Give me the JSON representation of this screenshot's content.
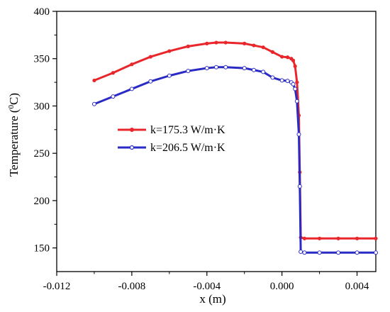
{
  "chart_data": {
    "type": "line",
    "title": "",
    "xlabel": "x (m)",
    "ylabel_main": "Temperature (",
    "ylabel_sup": "0",
    "ylabel_unit": "C)",
    "xlim": [
      -0.012,
      0.005
    ],
    "ylim": [
      125,
      400
    ],
    "xticks": [
      -0.012,
      -0.008,
      -0.004,
      0.0,
      0.004
    ],
    "xtick_labels": [
      "-0.012",
      "-0.008",
      "-0.004",
      "0.000",
      "0.004"
    ],
    "yticks": [
      150,
      200,
      250,
      300,
      350,
      400
    ],
    "ytick_labels": [
      "150",
      "200",
      "250",
      "300",
      "350",
      "400"
    ],
    "legend_position": "left-middle",
    "series": [
      {
        "name": "k=175.3 W/m·K",
        "color": "#e8262b",
        "marker": "filled-circle",
        "points": [
          [
            -0.01,
            327
          ],
          [
            -0.009,
            335
          ],
          [
            -0.008,
            344
          ],
          [
            -0.007,
            352
          ],
          [
            -0.006,
            358
          ],
          [
            -0.005,
            363
          ],
          [
            -0.004,
            366
          ],
          [
            -0.0035,
            367
          ],
          [
            -0.003,
            367
          ],
          [
            -0.002,
            366
          ],
          [
            -0.0015,
            364
          ],
          [
            -0.001,
            362
          ],
          [
            -0.0005,
            357
          ],
          [
            0.0,
            352
          ],
          [
            0.0003,
            351.5
          ],
          [
            0.0005,
            350
          ],
          [
            0.0006,
            348
          ],
          [
            0.0007,
            342
          ],
          [
            0.0008,
            325
          ],
          [
            0.0009,
            290
          ],
          [
            0.00095,
            230
          ],
          [
            0.001,
            161
          ],
          [
            0.0012,
            160
          ],
          [
            0.002,
            160
          ],
          [
            0.003,
            160
          ],
          [
            0.004,
            160
          ],
          [
            0.005,
            160
          ]
        ]
      },
      {
        "name": "k=206.5 W/m·K",
        "color": "#2a2bc4",
        "marker": "open-circle",
        "points": [
          [
            -0.01,
            302
          ],
          [
            -0.009,
            310
          ],
          [
            -0.008,
            318
          ],
          [
            -0.007,
            326
          ],
          [
            -0.006,
            332
          ],
          [
            -0.005,
            337
          ],
          [
            -0.004,
            340
          ],
          [
            -0.0035,
            341
          ],
          [
            -0.003,
            341
          ],
          [
            -0.002,
            340
          ],
          [
            -0.0015,
            338
          ],
          [
            -0.001,
            336
          ],
          [
            -0.0005,
            330
          ],
          [
            0.0,
            327
          ],
          [
            0.0003,
            326.5
          ],
          [
            0.0005,
            325
          ],
          [
            0.0006,
            323
          ],
          [
            0.0007,
            318
          ],
          [
            0.0008,
            305
          ],
          [
            0.0009,
            270
          ],
          [
            0.00095,
            215
          ],
          [
            0.001,
            146
          ],
          [
            0.0012,
            145
          ],
          [
            0.002,
            145
          ],
          [
            0.003,
            145
          ],
          [
            0.004,
            145
          ],
          [
            0.005,
            145
          ]
        ]
      }
    ]
  }
}
